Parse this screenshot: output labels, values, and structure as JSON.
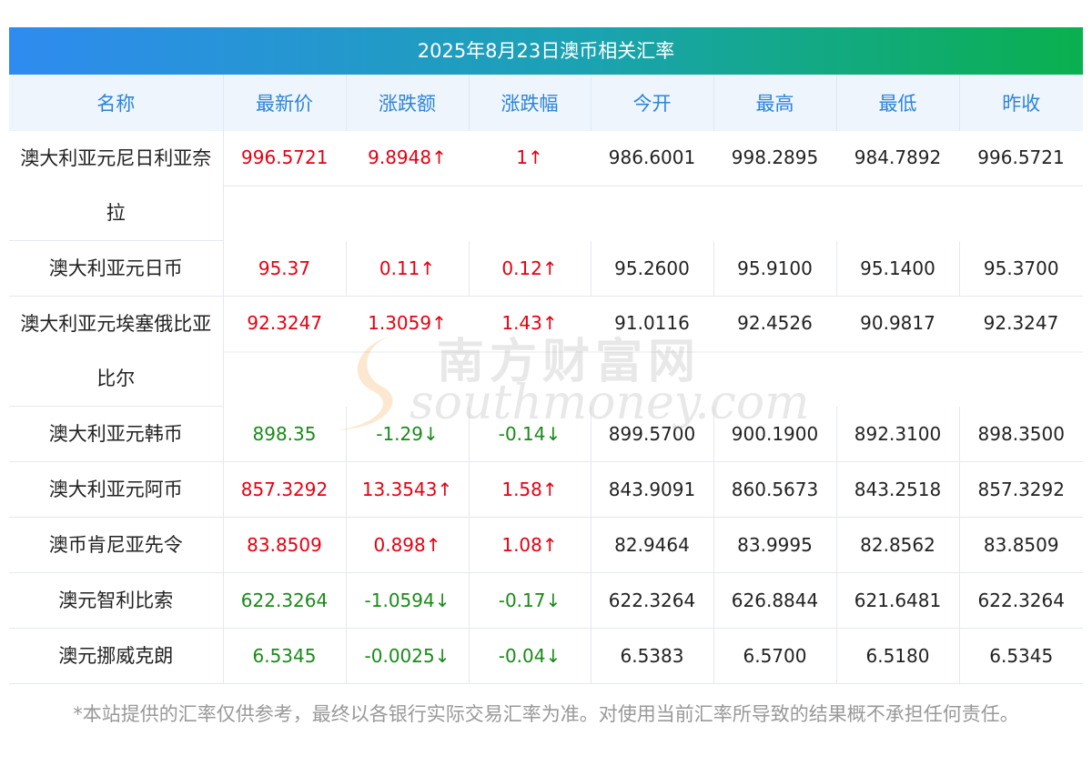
{
  "title": "2025年8月23日澳币相关汇率",
  "columns": [
    "名称",
    "最新价",
    "涨跌额",
    "涨跌幅",
    "今开",
    "最高",
    "最低",
    "昨收"
  ],
  "rows": [
    {
      "name": "澳大利亚元尼日利亚奈拉",
      "latest": "996.5721",
      "change": "9.8948↑",
      "pct": "1↑",
      "open": "986.6001",
      "high": "998.2895",
      "low": "984.7892",
      "prev": "996.5721",
      "dir": "up"
    },
    {
      "name": "澳大利亚元日币",
      "latest": "95.37",
      "change": "0.11↑",
      "pct": "0.12↑",
      "open": "95.2600",
      "high": "95.9100",
      "low": "95.1400",
      "prev": "95.3700",
      "dir": "up"
    },
    {
      "name": "澳大利亚元埃塞俄比亚比尔",
      "latest": "92.3247",
      "change": "1.3059↑",
      "pct": "1.43↑",
      "open": "91.0116",
      "high": "92.4526",
      "low": "90.9817",
      "prev": "92.3247",
      "dir": "up"
    },
    {
      "name": "澳大利亚元韩币",
      "latest": "898.35",
      "change": "-1.29↓",
      "pct": "-0.14↓",
      "open": "899.5700",
      "high": "900.1900",
      "low": "892.3100",
      "prev": "898.3500",
      "dir": "down"
    },
    {
      "name": "澳大利亚元阿币",
      "latest": "857.3292",
      "change": "13.3543↑",
      "pct": "1.58↑",
      "open": "843.9091",
      "high": "860.5673",
      "low": "843.2518",
      "prev": "857.3292",
      "dir": "up"
    },
    {
      "name": "澳币肯尼亚先令",
      "latest": "83.8509",
      "change": "0.898↑",
      "pct": "1.08↑",
      "open": "82.9464",
      "high": "83.9995",
      "low": "82.8562",
      "prev": "83.8509",
      "dir": "up"
    },
    {
      "name": "澳元智利比索",
      "latest": "622.3264",
      "change": "-1.0594↓",
      "pct": "-0.17↓",
      "open": "622.3264",
      "high": "626.8844",
      "low": "621.6481",
      "prev": "622.3264",
      "dir": "down"
    },
    {
      "name": "澳元挪威克朗",
      "latest": "6.5345",
      "change": "-0.0025↓",
      "pct": "-0.04↓",
      "open": "6.5383",
      "high": "6.5700",
      "low": "6.5180",
      "prev": "6.5345",
      "dir": "down"
    }
  ],
  "note": "*本站提供的汇率仅供参考，最终以各银行实际交易汇率为准。对使用当前汇率所导致的结果概不承担任何责任。",
  "watermark": {
    "cn": "南方财富网",
    "en": "southmoney.com"
  },
  "colors": {
    "up": "#e60012",
    "down": "#1a8a1a",
    "header_text": "#2d84d8",
    "banner_start": "#2f8bf0",
    "banner_end": "#0ab04e"
  }
}
